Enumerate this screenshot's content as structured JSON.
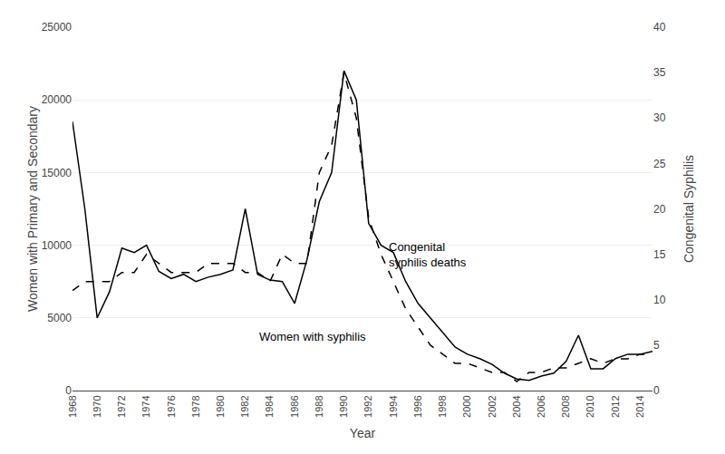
{
  "chart_data": {
    "type": "line",
    "x_label": "Year",
    "y_label": "Women with Primary and Secondary",
    "y2_label": "Congenital Syphilis",
    "x": [
      1968,
      1969,
      1970,
      1971,
      1972,
      1973,
      1974,
      1975,
      1976,
      1977,
      1978,
      1979,
      1980,
      1981,
      1982,
      1983,
      1984,
      1985,
      1986,
      1987,
      1988,
      1989,
      1990,
      1991,
      1992,
      1993,
      1994,
      1995,
      1996,
      1997,
      1998,
      1999,
      2000,
      2001,
      2002,
      2003,
      2004,
      2005,
      2006,
      2007,
      2008,
      2009,
      2010,
      2011,
      2012,
      2013,
      2014,
      2015
    ],
    "series": [
      {
        "color": "#000000",
        "line_style": "solid",
        "values": [
          18500,
          12500,
          5000,
          6800,
          9800,
          9500,
          10000,
          8200,
          7700,
          8000,
          7500,
          7800,
          8000,
          8300,
          12500,
          8000,
          7600,
          7500,
          6000,
          9000,
          13000,
          15000,
          22000,
          20000,
          11500,
          10000,
          9500,
          7500,
          6000,
          5000,
          4000,
          3000,
          2500,
          2200,
          1800,
          1200,
          800,
          700,
          1000,
          1200,
          2000,
          3800,
          1500,
          1500,
          2200,
          2500,
          2500,
          2700
        ]
      },
      {
        "color": "#000000",
        "line_style": "dashed",
        "axis": "y2",
        "values": [
          11,
          12,
          12,
          12,
          13,
          13,
          15,
          14,
          13,
          13,
          13,
          14,
          14,
          14,
          13,
          13,
          12,
          15,
          14,
          14,
          24,
          27,
          35,
          30,
          19,
          15,
          12,
          9,
          7,
          5,
          4,
          3,
          3,
          2.5,
          2,
          2,
          1,
          2,
          2,
          2.5,
          2.5,
          3,
          3.5,
          3,
          3.5,
          3.5,
          4,
          4
        ]
      }
    ],
    "xlim": [
      1968,
      2015
    ],
    "xticks": [
      1968,
      1970,
      1972,
      1974,
      1976,
      1978,
      1980,
      1982,
      1984,
      1986,
      1988,
      1990,
      1992,
      1994,
      1996,
      1998,
      2000,
      2002,
      2004,
      2006,
      2008,
      2010,
      2012,
      2014
    ],
    "ylim": [
      0,
      25000
    ],
    "yticks": [
      0,
      5000,
      10000,
      15000,
      20000,
      25000
    ],
    "y2lim": [
      0,
      40
    ],
    "y2ticks": [
      0,
      5,
      10,
      15,
      20,
      25,
      30,
      35,
      40
    ],
    "grid": true,
    "annotations": [
      {
        "text": "Congenital\nsyphilis deaths",
        "x": 1993.5,
        "y": 10500,
        "color": "#000000"
      },
      {
        "text": "Women with syphilis",
        "x": 1983.0,
        "y": 4300,
        "color": "#000000"
      }
    ]
  }
}
